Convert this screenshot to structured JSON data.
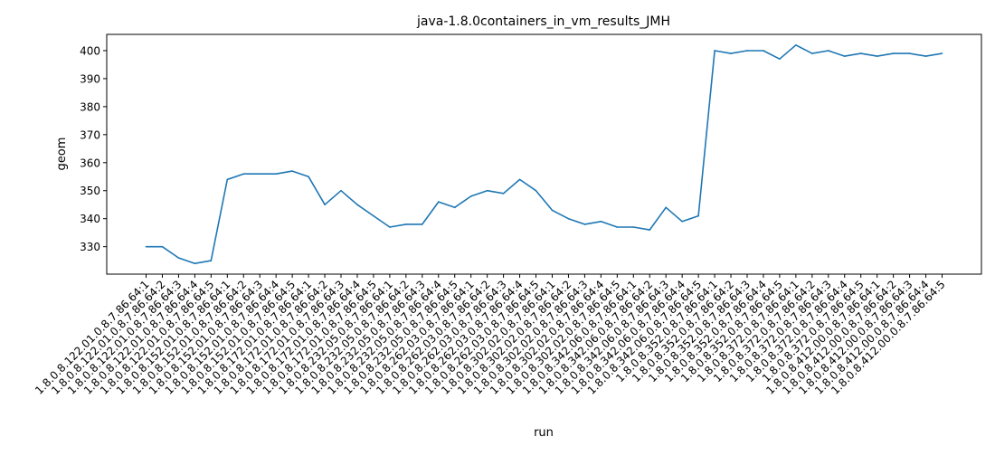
{
  "chart_data": {
    "type": "line",
    "title": "java-1.8.0containers_in_vm_results_JMH",
    "xlabel": "run",
    "ylabel": "geom",
    "ylim": [
      320.2,
      405.8
    ],
    "yticks": [
      330,
      340,
      350,
      360,
      370,
      380,
      390,
      400
    ],
    "grid": false,
    "color": "#1f77b4",
    "categories": [
      "1.8.0.8.122.01.0.8.7.86.64:1",
      "1.8.0.8.122.01.0.8.7.86.64:2",
      "1.8.0.8.122.01.0.8.7.86.64:3",
      "1.8.0.8.122.01.0.8.7.86.64:4",
      "1.8.0.8.122.01.0.8.7.86.64:5",
      "1.8.0.8.152.01.0.8.7.86.64:1",
      "1.8.0.8.152.01.0.8.7.86.64:2",
      "1.8.0.8.152.01.0.8.7.86.64:3",
      "1.8.0.8.152.01.0.8.7.86.64:4",
      "1.8.0.8.152.01.0.8.7.86.64:5",
      "1.8.0.8.172.01.0.8.7.86.64:1",
      "1.8.0.8.172.01.0.8.7.86.64:2",
      "1.8.0.8.172.01.0.8.7.86.64:3",
      "1.8.0.8.172.01.0.8.7.86.64:4",
      "1.8.0.8.172.01.0.8.7.86.64:5",
      "1.8.0.8.232.05.0.8.7.86.64:1",
      "1.8.0.8.232.05.0.8.7.86.64:2",
      "1.8.0.8.232.05.0.8.7.86.64:3",
      "1.8.0.8.232.05.0.8.7.86.64:4",
      "1.8.0.8.232.05.0.8.7.86.64:5",
      "1.8.0.8.262.03.0.8.7.86.64:1",
      "1.8.0.8.262.03.0.8.7.86.64:2",
      "1.8.0.8.262.03.0.8.7.86.64:3",
      "1.8.0.8.262.03.0.8.7.86.64:4",
      "1.8.0.8.262.03.0.8.7.86.64:5",
      "1.8.0.8.302.02.0.8.7.86.64:1",
      "1.8.0.8.302.02.0.8.7.86.64:2",
      "1.8.0.8.302.02.0.8.7.86.64:3",
      "1.8.0.8.302.02.0.8.7.86.64:4",
      "1.8.0.8.302.02.0.8.7.86.64:5",
      "1.8.0.8.342.06.0.8.7.86.64:1",
      "1.8.0.8.342.06.0.8.7.86.64:2",
      "1.8.0.8.342.06.0.8.7.86.64:3",
      "1.8.0.8.342.06.0.8.7.86.64:4",
      "1.8.0.8.342.06.0.8.7.86.64:5",
      "1.8.0.8.352.0.8.7.86.64:1",
      "1.8.0.8.352.0.8.7.86.64:2",
      "1.8.0.8.352.0.8.7.86.64:3",
      "1.8.0.8.352.0.8.7.86.64:4",
      "1.8.0.8.352.0.8.7.86.64:5",
      "1.8.0.8.372.0.8.7.86.64:1",
      "1.8.0.8.372.0.8.7.86.64:2",
      "1.8.0.8.372.0.8.7.86.64:3",
      "1.8.0.8.372.0.8.7.86.64:4",
      "1.8.0.8.372.0.8.7.86.64:5",
      "1.8.0.8.412.00.0.8.7.86.64:1",
      "1.8.0.8.412.00.0.8.7.86.64:2",
      "1.8.0.8.412.00.0.8.7.86.64:3",
      "1.8.0.8.412.00.0.8.7.86.64:4",
      "1.8.0.8.412.00.0.8.7.86.64:5"
    ],
    "values": [
      330,
      330,
      326,
      324,
      325,
      354,
      356,
      356,
      356,
      357,
      355,
      345,
      350,
      345,
      341,
      337,
      338,
      338,
      346,
      344,
      348,
      350,
      349,
      354,
      350,
      343,
      340,
      338,
      339,
      337,
      337,
      336,
      344,
      339,
      341,
      400,
      399,
      400,
      400,
      397,
      402,
      399,
      400,
      398,
      399,
      398,
      399,
      399,
      398,
      399
    ]
  }
}
